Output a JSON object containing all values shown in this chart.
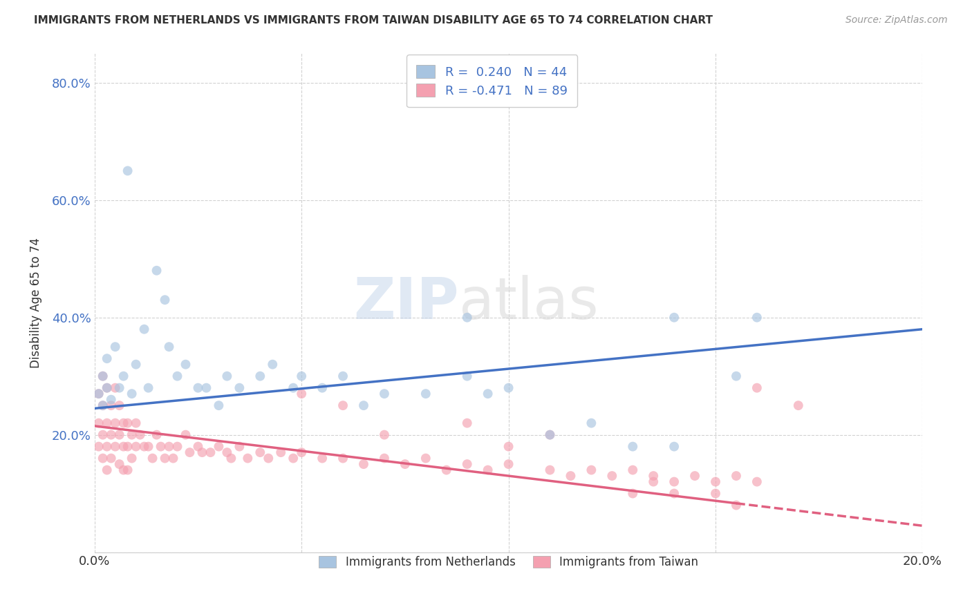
{
  "title": "IMMIGRANTS FROM NETHERLANDS VS IMMIGRANTS FROM TAIWAN DISABILITY AGE 65 TO 74 CORRELATION CHART",
  "source": "Source: ZipAtlas.com",
  "ylabel": "Disability Age 65 to 74",
  "xlim": [
    0.0,
    0.2
  ],
  "ylim": [
    0.0,
    0.85
  ],
  "netherlands_color": "#a8c4e0",
  "taiwan_color": "#f4a0b0",
  "netherlands_line_color": "#4472c4",
  "taiwan_line_color": "#e06080",
  "R_netherlands": 0.24,
  "N_netherlands": 44,
  "R_taiwan": -0.471,
  "N_taiwan": 89,
  "legend_label_netherlands": "Immigrants from Netherlands",
  "legend_label_taiwan": "Immigrants from Taiwan",
  "watermark_zip": "ZIP",
  "watermark_atlas": "atlas",
  "nl_line_x0": 0.0,
  "nl_line_y0": 0.245,
  "nl_line_x1": 0.2,
  "nl_line_y1": 0.38,
  "tw_line_x0": 0.0,
  "tw_line_y0": 0.215,
  "tw_line_x1_solid": 0.155,
  "tw_line_x1": 0.2,
  "tw_line_y1": 0.045,
  "netherlands_scatter_x": [
    0.001,
    0.002,
    0.002,
    0.003,
    0.003,
    0.004,
    0.005,
    0.006,
    0.007,
    0.008,
    0.009,
    0.01,
    0.012,
    0.013,
    0.015,
    0.017,
    0.018,
    0.02,
    0.022,
    0.025,
    0.027,
    0.03,
    0.032,
    0.035,
    0.04,
    0.043,
    0.048,
    0.05,
    0.055,
    0.06,
    0.065,
    0.07,
    0.08,
    0.09,
    0.095,
    0.1,
    0.11,
    0.12,
    0.13,
    0.14,
    0.155,
    0.16,
    0.09,
    0.14
  ],
  "netherlands_scatter_y": [
    0.27,
    0.3,
    0.25,
    0.28,
    0.33,
    0.26,
    0.35,
    0.28,
    0.3,
    0.65,
    0.27,
    0.32,
    0.38,
    0.28,
    0.48,
    0.43,
    0.35,
    0.3,
    0.32,
    0.28,
    0.28,
    0.25,
    0.3,
    0.28,
    0.3,
    0.32,
    0.28,
    0.3,
    0.28,
    0.3,
    0.25,
    0.27,
    0.27,
    0.3,
    0.27,
    0.28,
    0.2,
    0.22,
    0.18,
    0.4,
    0.3,
    0.4,
    0.4,
    0.18
  ],
  "taiwan_scatter_x": [
    0.001,
    0.001,
    0.001,
    0.002,
    0.002,
    0.002,
    0.002,
    0.003,
    0.003,
    0.003,
    0.003,
    0.004,
    0.004,
    0.004,
    0.005,
    0.005,
    0.005,
    0.006,
    0.006,
    0.006,
    0.007,
    0.007,
    0.007,
    0.008,
    0.008,
    0.008,
    0.009,
    0.009,
    0.01,
    0.01,
    0.011,
    0.012,
    0.013,
    0.014,
    0.015,
    0.016,
    0.017,
    0.018,
    0.019,
    0.02,
    0.022,
    0.023,
    0.025,
    0.026,
    0.028,
    0.03,
    0.032,
    0.033,
    0.035,
    0.037,
    0.04,
    0.042,
    0.045,
    0.048,
    0.05,
    0.055,
    0.06,
    0.065,
    0.07,
    0.075,
    0.08,
    0.085,
    0.09,
    0.095,
    0.1,
    0.11,
    0.115,
    0.12,
    0.125,
    0.13,
    0.135,
    0.14,
    0.145,
    0.15,
    0.155,
    0.16,
    0.05,
    0.06,
    0.07,
    0.09,
    0.1,
    0.11,
    0.13,
    0.135,
    0.14,
    0.15,
    0.155,
    0.16,
    0.17
  ],
  "taiwan_scatter_y": [
    0.27,
    0.22,
    0.18,
    0.25,
    0.2,
    0.16,
    0.3,
    0.28,
    0.22,
    0.18,
    0.14,
    0.25,
    0.2,
    0.16,
    0.28,
    0.22,
    0.18,
    0.25,
    0.2,
    0.15,
    0.22,
    0.18,
    0.14,
    0.22,
    0.18,
    0.14,
    0.2,
    0.16,
    0.22,
    0.18,
    0.2,
    0.18,
    0.18,
    0.16,
    0.2,
    0.18,
    0.16,
    0.18,
    0.16,
    0.18,
    0.2,
    0.17,
    0.18,
    0.17,
    0.17,
    0.18,
    0.17,
    0.16,
    0.18,
    0.16,
    0.17,
    0.16,
    0.17,
    0.16,
    0.17,
    0.16,
    0.16,
    0.15,
    0.16,
    0.15,
    0.16,
    0.14,
    0.15,
    0.14,
    0.15,
    0.14,
    0.13,
    0.14,
    0.13,
    0.14,
    0.13,
    0.12,
    0.13,
    0.12,
    0.13,
    0.12,
    0.27,
    0.25,
    0.2,
    0.22,
    0.18,
    0.2,
    0.1,
    0.12,
    0.1,
    0.1,
    0.08,
    0.28,
    0.25
  ]
}
